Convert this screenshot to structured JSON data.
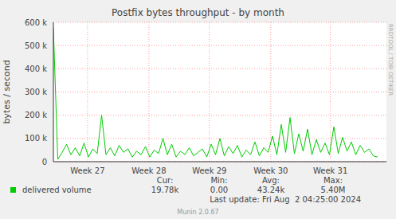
{
  "chart_data": {
    "type": "line",
    "title": "Postfix bytes throughput - by month",
    "y_label": "bytes / second",
    "x": [
      0,
      0.5,
      1,
      1.5,
      2,
      2.5,
      3,
      3.5,
      4,
      4.5,
      5,
      5.5,
      6,
      6.5,
      7,
      7.5,
      8,
      8.5,
      9,
      9.5,
      10,
      10.5,
      11,
      11.5,
      12,
      12.5,
      13,
      13.5,
      14,
      14.5,
      15,
      15.5,
      16,
      16.5,
      17,
      17.5,
      18,
      18.5,
      19,
      19.5,
      20,
      20.5,
      21,
      21.5,
      22,
      22.5,
      23,
      23.5,
      24,
      24.5,
      25,
      25.5,
      26,
      26.5,
      27,
      27.5,
      28,
      28.5,
      29,
      29.5,
      30,
      30.5,
      31,
      31.5,
      32,
      32.5,
      33,
      33.5,
      34,
      34.5,
      35,
      35.5,
      36,
      36.5,
      37
    ],
    "series": [
      {
        "name": "delivered volume",
        "color": "#00cc00",
        "values": [
          575000,
          10000,
          40000,
          75000,
          30000,
          60000,
          25000,
          80000,
          20000,
          55000,
          35000,
          200000,
          30000,
          60000,
          25000,
          70000,
          40000,
          55000,
          20000,
          45000,
          30000,
          65000,
          20000,
          50000,
          35000,
          100000,
          30000,
          75000,
          20000,
          45000,
          30000,
          60000,
          25000,
          40000,
          55000,
          20000,
          75000,
          30000,
          100000,
          25000,
          65000,
          35000,
          70000,
          20000,
          50000,
          30000,
          85000,
          25000,
          60000,
          40000,
          110000,
          30000,
          160000,
          40000,
          190000,
          35000,
          120000,
          45000,
          140000,
          30000,
          95000,
          40000,
          80000,
          30000,
          150000,
          35000,
          105000,
          45000,
          85000,
          30000,
          70000,
          40000,
          55000,
          25000,
          20000
        ]
      }
    ],
    "xlim": [
      0,
      38
    ],
    "xticks": [
      {
        "value": 3.9,
        "label": "Week 27"
      },
      {
        "value": 10.9,
        "label": "Week 28"
      },
      {
        "value": 17.8,
        "label": "Week 29"
      },
      {
        "value": 24.8,
        "label": "Week 30"
      },
      {
        "value": 31.6,
        "label": "Week 31"
      }
    ],
    "ylim": [
      0,
      600000
    ],
    "yticks": [
      0,
      {
        "value": 100000,
        "label": "100 k"
      },
      {
        "value": 200000,
        "label": "200 k"
      },
      {
        "value": 300000,
        "label": "300 k"
      },
      {
        "value": 400000,
        "label": "400 k"
      },
      {
        "value": 500000,
        "label": "500 k"
      },
      {
        "value": 600000,
        "label": "600 k"
      }
    ],
    "grid": true,
    "stats": [
      {
        "label": "Cur:",
        "value": "19.78k"
      },
      {
        "label": "Min:",
        "value": "0.00"
      },
      {
        "label": "Avg:",
        "value": "43.24k"
      },
      {
        "label": "Max:",
        "value": "5.40M"
      }
    ],
    "last_update": "Last update: Fri Aug  2 04:25:00 2024",
    "footer": "Munin 2.0.67",
    "watermark": "RRDTOOL / TOBI OETIKER"
  }
}
